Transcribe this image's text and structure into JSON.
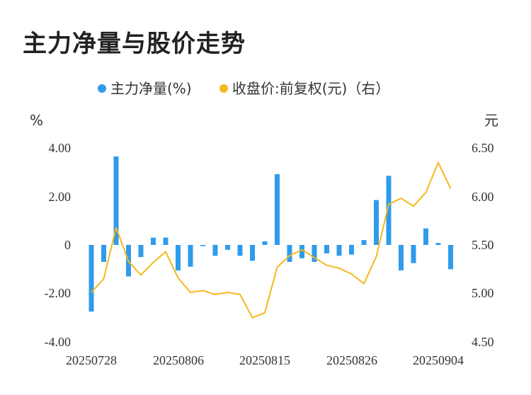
{
  "title": "主力净量与股价走势",
  "chart_data": {
    "type": "bar+line",
    "legend": {
      "placement": "top-center",
      "items": [
        {
          "name": "主力净量(%)",
          "color": "#2f9bec",
          "marker": "dot"
        },
        {
          "name": "收盘价:前复权(元)（右）",
          "color": "#f5b81c",
          "marker": "dot"
        }
      ]
    },
    "left_axis": {
      "unit": "%",
      "ticks": [
        "4.00",
        "2.00",
        "0",
        "-2.00",
        "-4.00"
      ],
      "range": [
        -4,
        4
      ]
    },
    "right_axis": {
      "unit": "元",
      "ticks": [
        "6.50",
        "6.00",
        "5.50",
        "5.00",
        "4.50"
      ],
      "range": [
        4.5,
        6.5
      ]
    },
    "x_tick_labels": [
      "20250728",
      "20250806",
      "20250815",
      "20250826",
      "20250904"
    ],
    "x_tick_index": [
      0,
      7,
      14,
      21,
      28
    ],
    "series": [
      {
        "name": "主力净量(%)",
        "type": "bar",
        "color": "#2f9bec",
        "values": [
          -2.75,
          -0.7,
          3.65,
          -1.3,
          -0.5,
          0.3,
          0.3,
          -1.05,
          -0.9,
          -0.05,
          -0.45,
          -0.2,
          -0.45,
          -0.65,
          0.15,
          2.92,
          -0.7,
          -0.55,
          -0.7,
          -0.35,
          -0.45,
          -0.4,
          0.2,
          1.85,
          2.85,
          -1.05,
          -0.75,
          0.68,
          0.08,
          -1.0
        ]
      },
      {
        "name": "收盘价:前复权(元)（右）",
        "type": "line",
        "color": "#f5b81c",
        "values": [
          5.01,
          5.15,
          5.68,
          5.33,
          5.19,
          5.32,
          5.43,
          5.16,
          5.01,
          5.03,
          4.99,
          5.01,
          4.99,
          4.75,
          4.8,
          5.27,
          5.39,
          5.45,
          5.37,
          5.29,
          5.26,
          5.2,
          5.1,
          5.38,
          5.92,
          5.98,
          5.9,
          6.04,
          6.35,
          6.08
        ]
      }
    ]
  }
}
